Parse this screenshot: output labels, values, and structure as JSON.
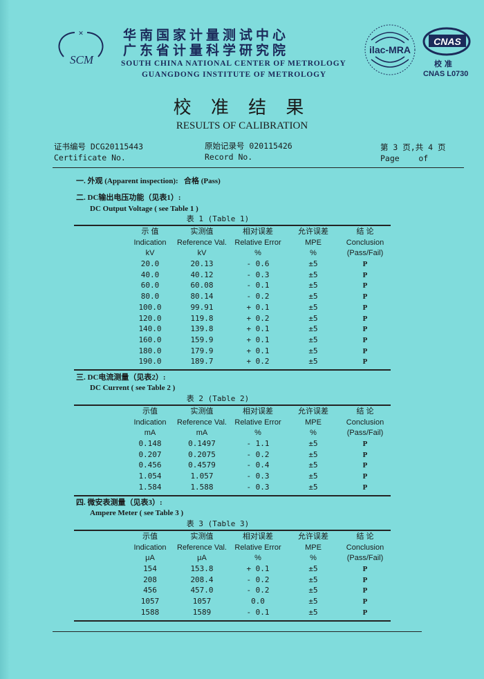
{
  "header": {
    "logo_text": "SCM",
    "org_cn_1": "华南国家计量测试中心",
    "org_cn_2": "广东省计量科学研究院",
    "org_en_1": "SOUTH CHINA NATIONAL CENTER OF METROLOGY",
    "org_en_2": "GUANGDONG INSTITUTE OF METROLOGY",
    "ilac_text": "ilac-MRA",
    "cnas_text": "CNAS",
    "cnas_sub": "校 准",
    "cnas_no": "CNAS L0730"
  },
  "title_cn": "校 准 结 果",
  "title_en": "RESULTS OF CALIBRATION",
  "meta": {
    "cert_label_cn": "证书编号 DCG20115443",
    "cert_label_en": "Certificate No.",
    "record_label_cn": "原始记录号 020115426",
    "record_label_en": "Record No.",
    "page_cn": "第 3 页,共 4 页",
    "page_en": "Page    of"
  },
  "sections": {
    "s1": "一. 外观 (Apparent inspection):   合格 (Pass)",
    "s2_cn": "二. DC输出电压功能（见表1）:",
    "s2_en": "DC Output Voltage ( see Table 1 )",
    "s3_cn": "三. DC电流测量（见表2）:",
    "s3_en": "DC Current ( see Table 2 )",
    "s4_cn": "四. 微安表测量（见表3）:",
    "s4_en": "Ampere Meter ( see Table 3 )"
  },
  "tables": [
    {
      "caption": "表 1 (Table 1)",
      "headers": [
        [
          "示 值",
          "Indication",
          "kV"
        ],
        [
          "实测值",
          "Reference Val.",
          "kV"
        ],
        [
          "相对误差",
          "Relative Error",
          "%"
        ],
        [
          "允许误差",
          "MPE",
          "%"
        ],
        [
          "结 论",
          "Conclusion",
          "(Pass/Fail)"
        ]
      ],
      "rows": [
        [
          "20.0",
          "20.13",
          "- 0.6",
          "±5",
          "P"
        ],
        [
          "40.0",
          "40.12",
          "- 0.3",
          "±5",
          "P"
        ],
        [
          "60.0",
          "60.08",
          "- 0.1",
          "±5",
          "P"
        ],
        [
          "80.0",
          "80.14",
          "- 0.2",
          "±5",
          "P"
        ],
        [
          "100.0",
          "99.91",
          "+ 0.1",
          "±5",
          "P"
        ],
        [
          "120.0",
          "119.8",
          "+ 0.2",
          "±5",
          "P"
        ],
        [
          "140.0",
          "139.8",
          "+ 0.1",
          "±5",
          "P"
        ],
        [
          "160.0",
          "159.9",
          "+ 0.1",
          "±5",
          "P"
        ],
        [
          "180.0",
          "179.9",
          "+ 0.1",
          "±5",
          "P"
        ],
        [
          "190.0",
          "189.7",
          "+ 0.2",
          "±5",
          "P"
        ]
      ]
    },
    {
      "caption": "表 2 (Table 2)",
      "headers": [
        [
          "示值",
          "Indication",
          "mA"
        ],
        [
          "实测值",
          "Reference Val.",
          "mA"
        ],
        [
          "相对误差",
          "Relative Error",
          "%"
        ],
        [
          "允许误差",
          "MPE",
          "%"
        ],
        [
          "结 论",
          "Conclusion",
          "(Pass/Fail)"
        ]
      ],
      "rows": [
        [
          "0.148",
          "0.1497",
          "- 1.1",
          "±5",
          "P"
        ],
        [
          "0.207",
          "0.2075",
          "- 0.2",
          "±5",
          "P"
        ],
        [
          "0.456",
          "0.4579",
          "- 0.4",
          "±5",
          "P"
        ],
        [
          "1.054",
          "1.057",
          "- 0.3",
          "±5",
          "P"
        ],
        [
          "1.584",
          "1.588",
          "- 0.3",
          "±5",
          "P"
        ]
      ]
    },
    {
      "caption": "表 3 (Table 3)",
      "headers": [
        [
          "示值",
          "Indication",
          "μA"
        ],
        [
          "实测值",
          "Reference Val.",
          "μA"
        ],
        [
          "相对误差",
          "Relative Error",
          "%"
        ],
        [
          "允许误差",
          "MPE",
          "%"
        ],
        [
          "结 论",
          "Conclusion",
          "(Pass/Fail)"
        ]
      ],
      "rows": [
        [
          "154",
          "153.8",
          "+ 0.1",
          "±5",
          "P"
        ],
        [
          "208",
          "208.4",
          "- 0.2",
          "±5",
          "P"
        ],
        [
          "456",
          "457.0",
          "- 0.2",
          "±5",
          "P"
        ],
        [
          "1057",
          "1057",
          "0.0",
          "±5",
          "P"
        ],
        [
          "1588",
          "1589",
          "- 0.1",
          "±5",
          "P"
        ]
      ]
    }
  ]
}
